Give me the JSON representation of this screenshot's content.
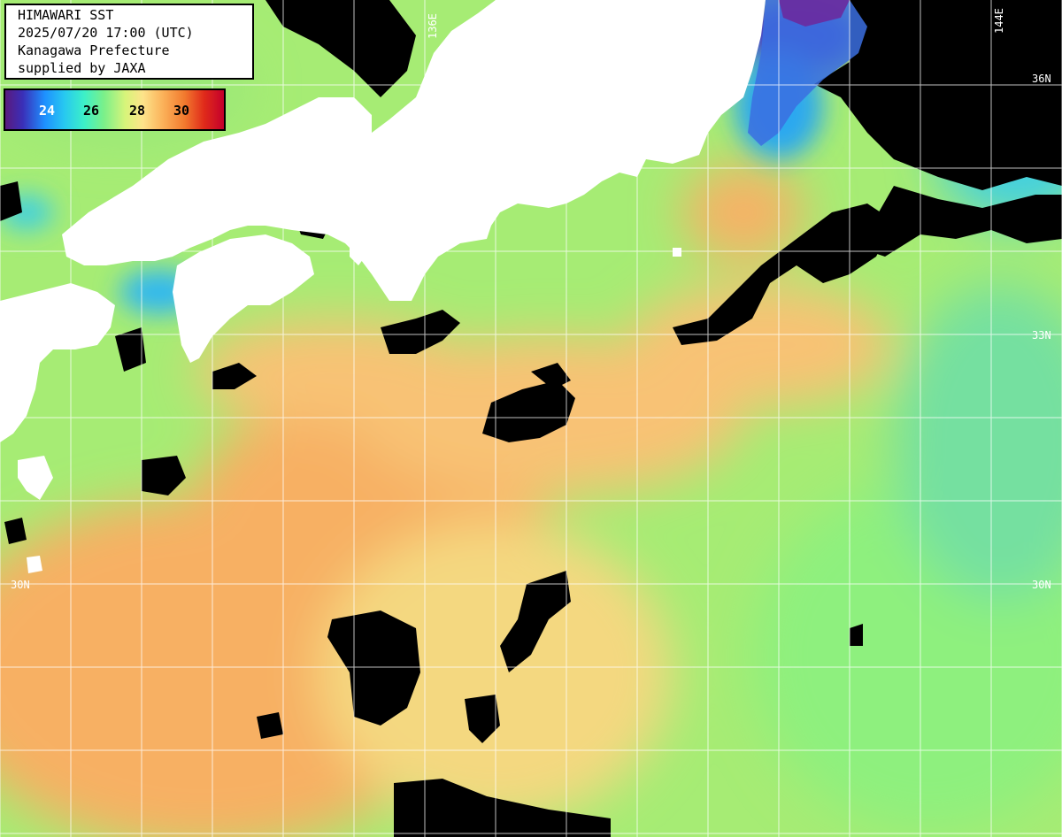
{
  "info": {
    "lines": [
      "HIMAWARI SST",
      "2025/07/20 17:00 (UTC)",
      "Kanagawa Prefecture",
      "supplied by JAXA"
    ]
  },
  "colorbar": {
    "ticks": [
      "24",
      "26",
      "28",
      "30"
    ]
  },
  "grid_labels": {
    "lon_136": "136E",
    "lon_144": "144E",
    "lat_36": "36N",
    "lat_33": "33N",
    "lat_30_left": "30N",
    "lat_30_right": "30N"
  },
  "colors": {
    "ocean_warm": "#fbb25a",
    "ocean_mild": "#d8f47a",
    "ocean_cool": "#7af08a",
    "ocean_cold": "#27c8f0",
    "land": "#ffffff",
    "cloud": "#000000",
    "grid": "#ffffff"
  }
}
